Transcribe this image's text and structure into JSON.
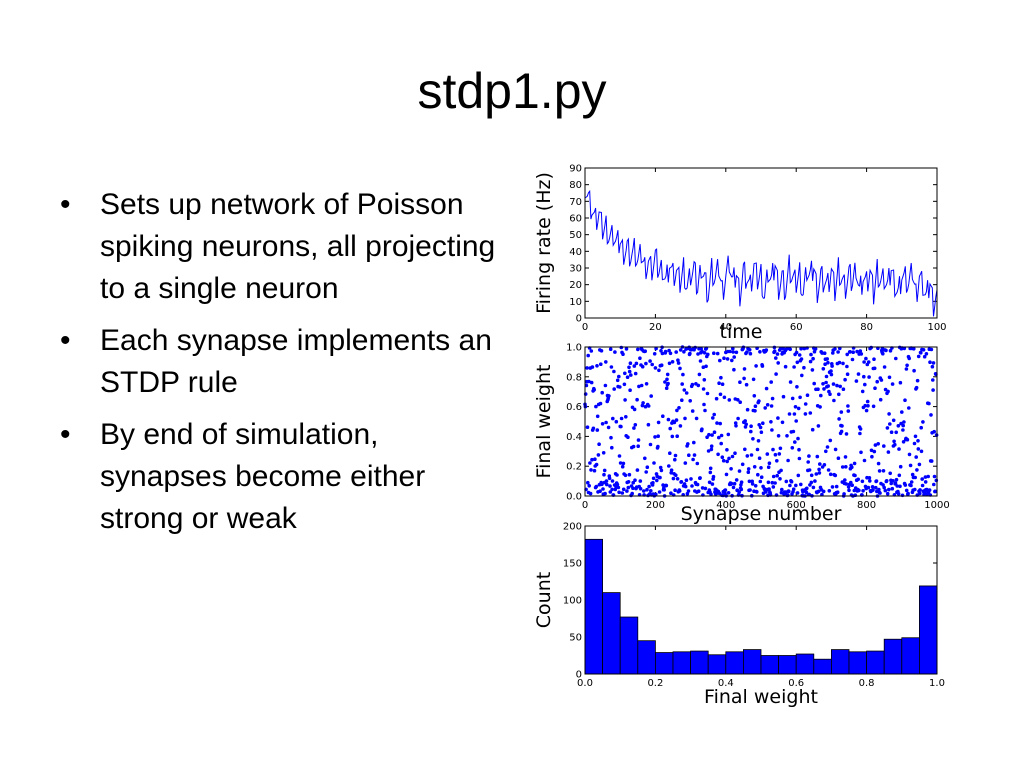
{
  "slide": {
    "title": "stdp1.py",
    "bullets": [
      "Sets up network of Poisson spiking neurons, all projecting to a single neuron",
      "Each synapse implements an STDP rule",
      "By end of simulation, synapses become either strong or weak"
    ]
  },
  "colors": {
    "data": "#0000ff",
    "axis": "#000000",
    "background": "#ffffff"
  },
  "chart_data": [
    {
      "type": "line",
      "xlabel": "time",
      "ylabel": "Firing rate (Hz)",
      "xlim": [
        0,
        100
      ],
      "ylim": [
        0,
        90
      ],
      "xticks": [
        0,
        20,
        40,
        60,
        80,
        100
      ],
      "xtick_labels": [
        "0",
        "20",
        "40",
        "60",
        "80",
        "100"
      ],
      "yticks": [
        0,
        10,
        20,
        30,
        40,
        50,
        60,
        70,
        80,
        90
      ],
      "ytick_labels": [
        "0",
        "10",
        "20",
        "30",
        "40",
        "50",
        "60",
        "70",
        "80",
        "90"
      ],
      "grid": false,
      "series": [
        {
          "x": [
            0,
            1,
            2,
            3,
            4,
            5,
            6,
            7,
            8,
            9,
            10,
            11,
            12,
            13,
            14,
            15,
            16,
            17,
            18,
            19,
            20,
            21,
            22,
            23,
            24,
            25,
            26,
            27,
            28,
            29,
            30,
            31,
            32,
            33,
            34,
            35,
            36,
            37,
            38,
            39,
            40,
            41,
            42,
            43,
            44,
            45,
            46,
            47,
            48,
            49,
            50,
            51,
            52,
            53,
            54,
            55,
            56,
            57,
            58,
            59,
            60,
            61,
            62,
            63,
            64,
            65,
            66,
            67,
            68,
            69,
            70,
            71,
            72,
            73,
            74,
            75,
            76,
            77,
            78,
            79,
            80,
            81,
            82,
            83,
            84,
            85,
            86,
            87,
            88,
            89,
            90,
            91,
            92,
            93,
            94,
            95,
            96,
            97,
            98,
            99,
            100
          ],
          "values": [
            80,
            72,
            65,
            58,
            62,
            52,
            55,
            48,
            50,
            44,
            46,
            40,
            43,
            37,
            40,
            33,
            38,
            30,
            34,
            29,
            36,
            28,
            31,
            22,
            33,
            25,
            27,
            20,
            30,
            18,
            26,
            29,
            17,
            32,
            24,
            14,
            28,
            22,
            30,
            16,
            25,
            34,
            20,
            27,
            15,
            29,
            24,
            18,
            31,
            22,
            26,
            12,
            28,
            21,
            33,
            19,
            25,
            16,
            30,
            23,
            20,
            27,
            14,
            29,
            24,
            31,
            17,
            26,
            22,
            19,
            28,
            15,
            30,
            23,
            18,
            26,
            21,
            32,
            16,
            25,
            20,
            27,
            13,
            29,
            22,
            24,
            18,
            30,
            21,
            15,
            26,
            23,
            19,
            28,
            14,
            25,
            20,
            11,
            22,
            9,
            17
          ]
        }
      ]
    },
    {
      "type": "scatter",
      "xlabel": "Synapse number",
      "ylabel": "Final weight",
      "xlim": [
        0,
        1000
      ],
      "ylim": [
        0.0,
        1.0
      ],
      "xticks": [
        0,
        200,
        400,
        600,
        800,
        1000
      ],
      "xtick_labels": [
        "0",
        "200",
        "400",
        "600",
        "800",
        "1000"
      ],
      "yticks": [
        0.0,
        0.2,
        0.4,
        0.6,
        0.8,
        1.0
      ],
      "ytick_labels": [
        "0.0",
        "0.2",
        "0.4",
        "0.6",
        "0.8",
        "1.0"
      ],
      "grid": false,
      "n_points": 1000
    },
    {
      "type": "bar",
      "xlabel": "Final weight",
      "ylabel": "Count",
      "xlim": [
        0.0,
        1.0
      ],
      "ylim": [
        0,
        200
      ],
      "xticks": [
        0.0,
        0.2,
        0.4,
        0.6,
        0.8,
        1.0
      ],
      "xtick_labels": [
        "0.0",
        "0.2",
        "0.4",
        "0.6",
        "0.8",
        "1.0"
      ],
      "yticks": [
        0,
        50,
        100,
        150,
        200
      ],
      "ytick_labels": [
        "0",
        "50",
        "100",
        "150",
        "200"
      ],
      "grid": false,
      "bin_edges": [
        0.0,
        0.05,
        0.1,
        0.15,
        0.2,
        0.25,
        0.3,
        0.35,
        0.4,
        0.45,
        0.5,
        0.55,
        0.6,
        0.65,
        0.7,
        0.75,
        0.8,
        0.85,
        0.9,
        0.95,
        1.0
      ],
      "values": [
        182,
        110,
        77,
        45,
        29,
        30,
        31,
        26,
        30,
        33,
        25,
        25,
        27,
        20,
        33,
        30,
        31,
        47,
        49,
        119
      ]
    }
  ]
}
